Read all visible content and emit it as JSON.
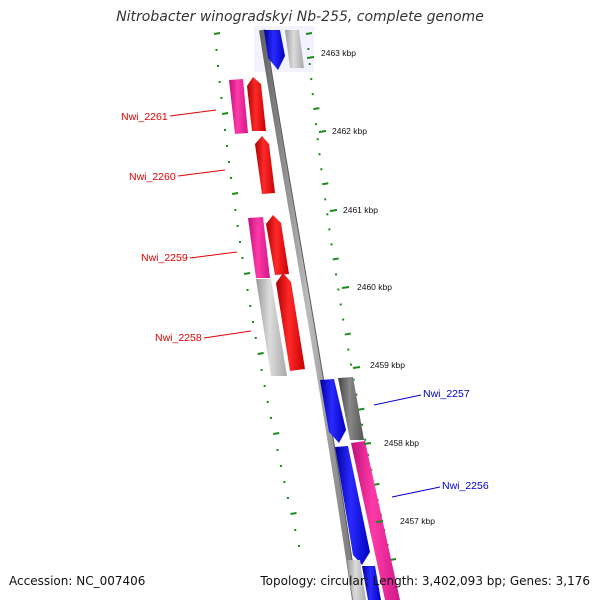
{
  "title": "Nitrobacter winogradskyi Nb-255, complete genome",
  "accession": "Accession: NC_007406",
  "summary": "Topology: circular; Length: 3,402,093 bp; Genes: 3,176",
  "kbp_ticks": [
    "2463 kbp",
    "2462 kbp",
    "2461 kbp",
    "2460 kbp",
    "2459 kbp",
    "2458 kbp",
    "2457 kbp"
  ],
  "gene_labels": [
    {
      "text": "Nwi_2261",
      "color": "#e00000"
    },
    {
      "text": "Nwi_2260",
      "color": "#e00000"
    },
    {
      "text": "Nwi_2259",
      "color": "#e00000"
    },
    {
      "text": "Nwi_2258",
      "color": "#e00000"
    },
    {
      "text": "Nwi_2257",
      "color": "#0000cc"
    },
    {
      "text": "Nwi_2256",
      "color": "#0000cc"
    }
  ],
  "colors": {
    "reverse_cds": "#ff0000",
    "forward_cds": "#0000ff",
    "reverse_gene": "#ff1493",
    "forward_gene": "#ff1493",
    "other_gene": "#bbbbbb",
    "dark_gene": "#666666",
    "backbone": "#888888",
    "tick": "#1a8c1a"
  }
}
